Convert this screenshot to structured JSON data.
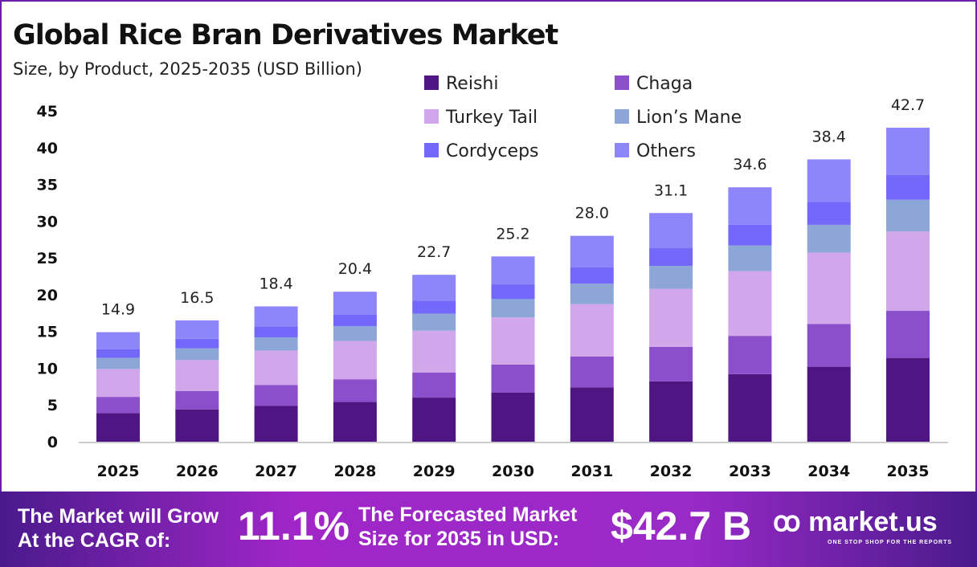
{
  "chart_data": {
    "type": "bar",
    "stacked": true,
    "title": "Global Rice Bran Derivatives Market",
    "subtitle": "Size, by Product, 2025-2035 (USD Billion)",
    "categories": [
      "2025",
      "2026",
      "2027",
      "2028",
      "2029",
      "2030",
      "2031",
      "2032",
      "2033",
      "2034",
      "2035"
    ],
    "totals": [
      "14.9",
      "16.5",
      "18.4",
      "20.4",
      "22.7",
      "25.2",
      "28.0",
      "31.1",
      "34.6",
      "38.4",
      "42.7"
    ],
    "ylim": [
      0,
      45
    ],
    "yticks": [
      0,
      5,
      10,
      15,
      20,
      25,
      30,
      35,
      40,
      45
    ],
    "grid": false,
    "legend_position": "top-right",
    "series": [
      {
        "name": "Reishi",
        "color": "#4f1683",
        "values": [
          3.9,
          4.4,
          4.9,
          5.4,
          6.0,
          6.7,
          7.4,
          8.2,
          9.2,
          10.2,
          11.4
        ]
      },
      {
        "name": "Chaga",
        "color": "#8c4fcc",
        "values": [
          2.2,
          2.5,
          2.8,
          3.1,
          3.4,
          3.8,
          4.2,
          4.7,
          5.2,
          5.8,
          6.4
        ]
      },
      {
        "name": "Turkey Tail",
        "color": "#d2a6ea",
        "values": [
          3.8,
          4.2,
          4.7,
          5.2,
          5.7,
          6.4,
          7.1,
          7.9,
          8.8,
          9.7,
          10.8
        ]
      },
      {
        "name": "Lion’s Mane",
        "color": "#8ca6d8",
        "values": [
          1.5,
          1.6,
          1.8,
          2.0,
          2.3,
          2.5,
          2.8,
          3.1,
          3.5,
          3.8,
          4.3
        ]
      },
      {
        "name": "Cordyceps",
        "color": "#7468fa",
        "values": [
          1.2,
          1.3,
          1.5,
          1.6,
          1.8,
          2.0,
          2.2,
          2.5,
          2.8,
          3.1,
          3.4
        ]
      },
      {
        "name": "Others",
        "color": "#8c86fa",
        "values": [
          2.3,
          2.5,
          2.7,
          3.1,
          3.5,
          3.8,
          4.3,
          4.7,
          5.1,
          5.8,
          6.4
        ]
      }
    ]
  },
  "footer": {
    "cagr_label": "The Market will Grow At the CAGR of:",
    "cagr_value": "11.1%",
    "forecast_label": "The Forecasted Market Size for 2035 in USD:",
    "forecast_value": "$42.7 B",
    "logo": "market.us",
    "tagline": "ONE STOP SHOP FOR THE REPORTS"
  }
}
